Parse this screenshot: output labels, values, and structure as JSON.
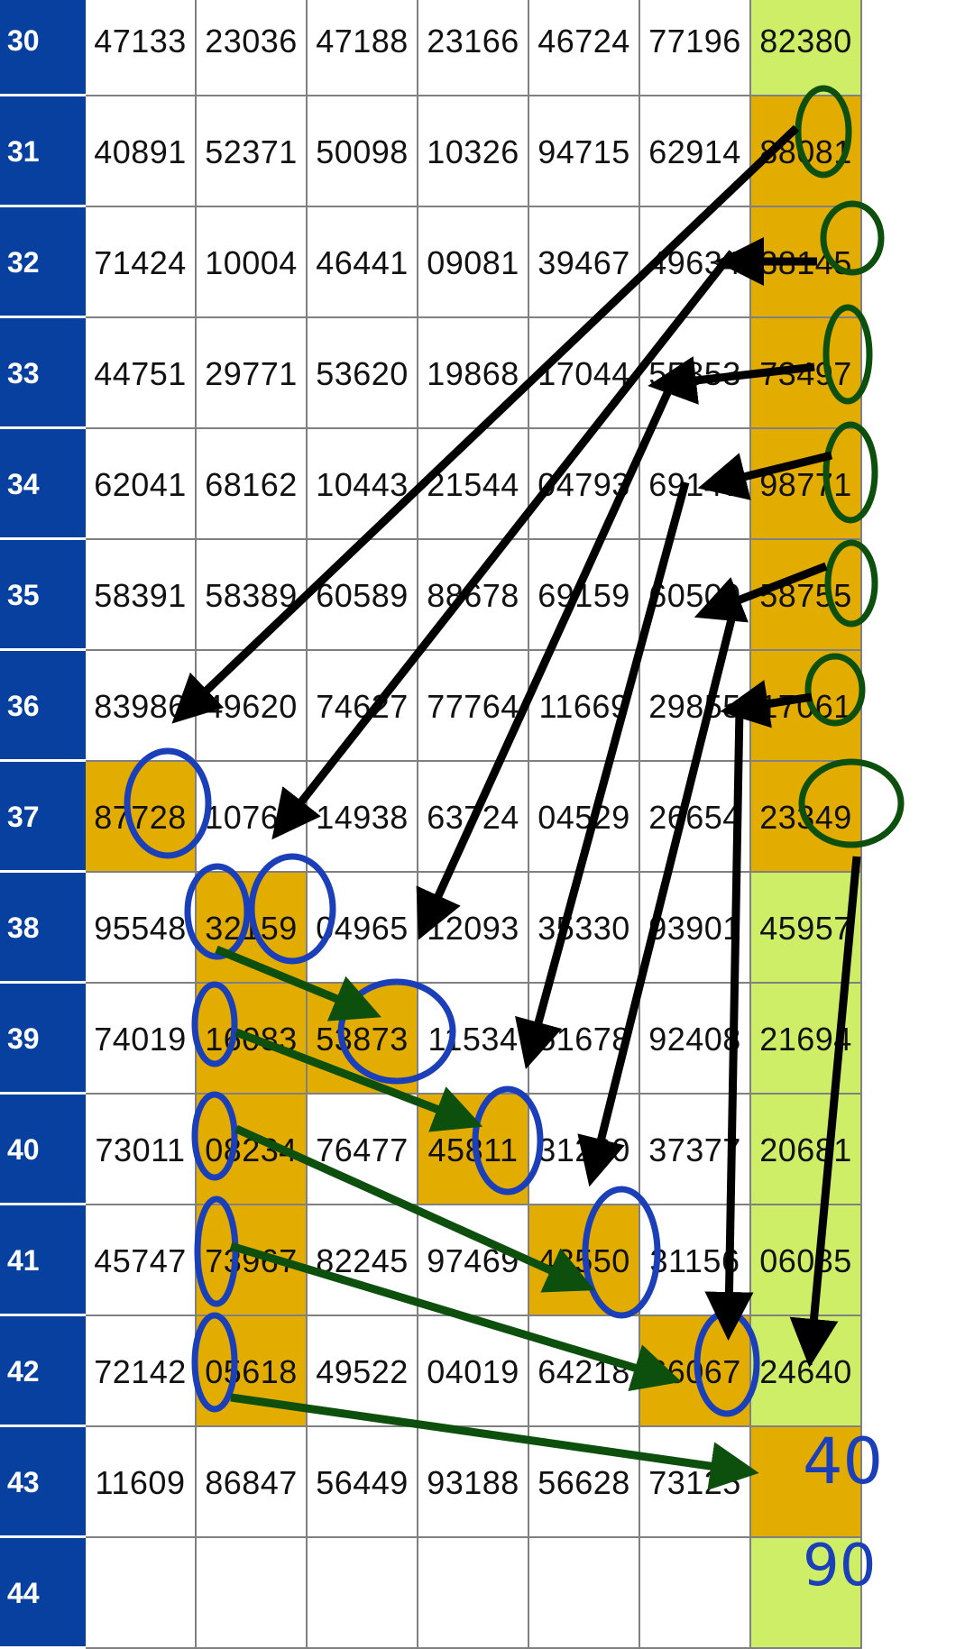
{
  "rows": [
    {
      "label": "30",
      "cells": [
        "47133",
        "23036",
        "47188",
        "23166",
        "46724",
        "77196",
        "82380"
      ]
    },
    {
      "label": "31",
      "cells": [
        "40891",
        "52371",
        "50098",
        "10326",
        "94715",
        "62914",
        "88081"
      ]
    },
    {
      "label": "32",
      "cells": [
        "71424",
        "10004",
        "46441",
        "09081",
        "39467",
        "49634",
        "38145"
      ]
    },
    {
      "label": "33",
      "cells": [
        "44751",
        "29771",
        "53620",
        "19868",
        "17044",
        "55853",
        "73497"
      ]
    },
    {
      "label": "34",
      "cells": [
        "62041",
        "68162",
        "10443",
        "21544",
        "04793",
        "69147",
        "98771"
      ]
    },
    {
      "label": "35",
      "cells": [
        "58391",
        "58389",
        "60589",
        "88678",
        "69159",
        "60509",
        "58755"
      ]
    },
    {
      "label": "36",
      "cells": [
        "83986",
        "49620",
        "74627",
        "77764",
        "11669",
        "29855",
        "17061"
      ]
    },
    {
      "label": "37",
      "cells": [
        "87728",
        "10765",
        "14938",
        "63724",
        "04529",
        "26654",
        "23349"
      ]
    },
    {
      "label": "38",
      "cells": [
        "95548",
        "32159",
        "04965",
        "12093",
        "35330",
        "93901",
        "45957"
      ]
    },
    {
      "label": "39",
      "cells": [
        "74019",
        "16083",
        "53873",
        "11534",
        "51678",
        "92408",
        "21694"
      ]
    },
    {
      "label": "40",
      "cells": [
        "73011",
        "08234",
        "76477",
        "45811",
        "31220",
        "37377",
        "20681"
      ]
    },
    {
      "label": "41",
      "cells": [
        "45747",
        "73967",
        "82245",
        "97469",
        "43550",
        "31156",
        "06085"
      ]
    },
    {
      "label": "42",
      "cells": [
        "72142",
        "05618",
        "49522",
        "04019",
        "64218",
        "66067",
        "24640"
      ]
    },
    {
      "label": "43",
      "cells": [
        "11609",
        "86847",
        "56449",
        "93188",
        "56628",
        "73125",
        ""
      ]
    },
    {
      "label": "44",
      "cells": [
        "",
        "",
        "",
        "",
        "",
        "",
        ""
      ]
    }
  ],
  "highlights": {
    "gold": [
      [
        1,
        6
      ],
      [
        2,
        6
      ],
      [
        3,
        6
      ],
      [
        4,
        6
      ],
      [
        5,
        6
      ],
      [
        6,
        6
      ],
      [
        7,
        6
      ],
      [
        7,
        0
      ],
      [
        8,
        1
      ],
      [
        9,
        1
      ],
      [
        9,
        2
      ],
      [
        10,
        1
      ],
      [
        10,
        3
      ],
      [
        11,
        1
      ],
      [
        11,
        4
      ],
      [
        12,
        1
      ],
      [
        12,
        5
      ],
      [
        13,
        6
      ]
    ],
    "lime": [
      [
        0,
        6
      ],
      [
        8,
        6
      ],
      [
        9,
        6
      ],
      [
        10,
        6
      ],
      [
        11,
        6
      ],
      [
        12,
        6
      ],
      [
        14,
        6
      ]
    ]
  },
  "colors": {
    "row_header": "#0840a0",
    "gold": "#e2ad00",
    "lime": "#cdee66",
    "black_arrow": "#000000",
    "green_arrow": "#0d4f0d",
    "blue_circle": "#1b3fb8",
    "green_circle": "#0d4f0d"
  },
  "notes": [
    "40",
    "90"
  ]
}
